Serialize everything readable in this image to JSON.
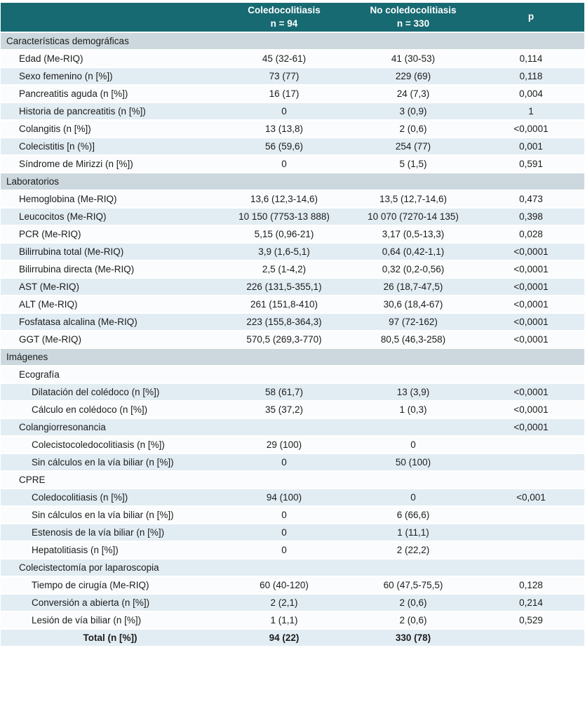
{
  "colors": {
    "header_bg": "#176a72",
    "header_text": "#ffffff",
    "section_bg": "#ccd8de",
    "row_light_bg": "#fbfcfd",
    "row_shaded_bg": "#e2edf3",
    "body_text": "#1c1c1c",
    "divider": "#ffffff"
  },
  "table": {
    "columns": [
      {
        "label": "",
        "sublabel": ""
      },
      {
        "label": "Coledocolitiasis",
        "sublabel": "n = 94"
      },
      {
        "label": "No coledocolitiasis",
        "sublabel": "n = 330"
      },
      {
        "label": "p",
        "sublabel": ""
      }
    ],
    "rows": [
      {
        "type": "section",
        "label": "Características demográficas"
      },
      {
        "type": "row",
        "indent": 1,
        "label": "Edad (Me-RIQ)",
        "v1": "45 (32-61)",
        "v2": "41 (30-53)",
        "p": "0,114"
      },
      {
        "type": "row",
        "indent": 1,
        "label": "Sexo femenino (n [%])",
        "v1": "73 (77)",
        "v2": "229 (69)",
        "p": "0,118"
      },
      {
        "type": "row",
        "indent": 1,
        "label": "Pancreatitis aguda (n [%])",
        "v1": "16 (17)",
        "v2": "24 (7,3)",
        "p": "0,004"
      },
      {
        "type": "row",
        "indent": 1,
        "label": "Historia de pancreatitis (n [%])",
        "v1": "0",
        "v2": "3 (0,9)",
        "p": "1"
      },
      {
        "type": "row",
        "indent": 1,
        "label": "Colangitis (n [%])",
        "v1": "13 (13,8)",
        "v2": "2 (0,6)",
        "p": "<0,0001"
      },
      {
        "type": "row",
        "indent": 1,
        "label": "Colecistitis [n (%)]",
        "v1": "56 (59,6)",
        "v2": "254 (77)",
        "p": "0,001"
      },
      {
        "type": "row",
        "indent": 1,
        "label": "Síndrome de Mirizzi (n [%])",
        "v1": "0",
        "v2": "5 (1,5)",
        "p": "0,591"
      },
      {
        "type": "section",
        "label": "Laboratorios"
      },
      {
        "type": "row",
        "indent": 1,
        "label": "Hemoglobina (Me-RIQ)",
        "v1": "13,6 (12,3-14,6)",
        "v2": "13,5 (12,7-14,6)",
        "p": "0,473"
      },
      {
        "type": "row",
        "indent": 1,
        "label": "Leucocitos (Me-RIQ)",
        "v1": "10 150 (7753-13 888)",
        "v2": "10 070 (7270-14 135)",
        "p": "0,398"
      },
      {
        "type": "row",
        "indent": 1,
        "label": "PCR (Me-RIQ)",
        "v1": "5,15 (0,96-21)",
        "v2": "3,17 (0,5-13,3)",
        "p": "0,028"
      },
      {
        "type": "row",
        "indent": 1,
        "label": "Bilirrubina total (Me-RIQ)",
        "v1": "3,9 (1,6-5,1)",
        "v2": "0,64 (0,42-1,1)",
        "p": "<0,0001"
      },
      {
        "type": "row",
        "indent": 1,
        "label": "Bilirrubina directa (Me-RIQ)",
        "v1": "2,5 (1-4,2)",
        "v2": "0,32 (0,2-0,56)",
        "p": "<0,0001"
      },
      {
        "type": "row",
        "indent": 1,
        "label": "AST (Me-RIQ)",
        "v1": "226 (131,5-355,1)",
        "v2": "26 (18,7-47,5)",
        "p": "<0,0001"
      },
      {
        "type": "row",
        "indent": 1,
        "label": "ALT (Me-RIQ)",
        "v1": "261 (151,8-410)",
        "v2": "30,6 (18,4-67)",
        "p": "<0,0001"
      },
      {
        "type": "row",
        "indent": 1,
        "label": "Fosfatasa alcalina (Me-RIQ)",
        "v1": "223 (155,8-364,3)",
        "v2": "97 (72-162)",
        "p": "<0,0001"
      },
      {
        "type": "row",
        "indent": 1,
        "label": "GGT (Me-RIQ)",
        "v1": "570,5 (269,3-770)",
        "v2": "80,5 (46,3-258)",
        "p": "<0,0001"
      },
      {
        "type": "section",
        "label": "Imágenes"
      },
      {
        "type": "row",
        "indent": 1,
        "label": "Ecografía",
        "v1": "",
        "v2": "",
        "p": ""
      },
      {
        "type": "row",
        "indent": 2,
        "label": "Dilatación del colédoco (n [%])",
        "v1": "58 (61,7)",
        "v2": "13 (3,9)",
        "p": "<0,0001"
      },
      {
        "type": "row",
        "indent": 2,
        "label": "Cálculo en colédoco (n [%])",
        "v1": "35 (37,2)",
        "v2": "1 (0,3)",
        "p": "<0,0001"
      },
      {
        "type": "row",
        "indent": 1,
        "label": "Colangiorresonancia",
        "v1": "",
        "v2": "",
        "p": "<0,0001"
      },
      {
        "type": "row",
        "indent": 2,
        "label": "Colecistocoledocolitiasis (n [%])",
        "v1": "29 (100)",
        "v2": "0",
        "p": ""
      },
      {
        "type": "row",
        "indent": 2,
        "label": "Sin cálculos en la vía biliar (n [%])",
        "v1": "0",
        "v2": "50 (100)",
        "p": ""
      },
      {
        "type": "row",
        "indent": 1,
        "label": "CPRE",
        "v1": "",
        "v2": "",
        "p": ""
      },
      {
        "type": "row",
        "indent": 2,
        "label": "Coledocolitiasis (n [%])",
        "v1": "94 (100)",
        "v2": "0",
        "p": "<0,001"
      },
      {
        "type": "row",
        "indent": 2,
        "label": "Sin cálculos en la vía biliar (n [%])",
        "v1": "0",
        "v2": "6 (66,6)",
        "p": ""
      },
      {
        "type": "row",
        "indent": 2,
        "label": "Estenosis de la vía biliar (n [%])",
        "v1": "0",
        "v2": "1 (11,1)",
        "p": ""
      },
      {
        "type": "row",
        "indent": 2,
        "label": "Hepatolitiasis (n [%])",
        "v1": "0",
        "v2": "2 (22,2)",
        "p": ""
      },
      {
        "type": "row",
        "indent": 1,
        "label": "Colecistectomía por laparoscopia",
        "v1": "",
        "v2": "",
        "p": ""
      },
      {
        "type": "row",
        "indent": 2,
        "label": "Tiempo de cirugía (Me-RIQ)",
        "v1": "60 (40-120)",
        "v2": "60 (47,5-75,5)",
        "p": "0,128"
      },
      {
        "type": "row",
        "indent": 2,
        "label": "Conversión a abierta (n [%])",
        "v1": "2 (2,1)",
        "v2": "2 (0,6)",
        "p": "0,214"
      },
      {
        "type": "row",
        "indent": 2,
        "label": "Lesión de vía biliar (n [%])",
        "v1": "1 (1,1)",
        "v2": "2 (0,6)",
        "p": "0,529"
      },
      {
        "type": "total",
        "indent": 1,
        "label": "Total (n [%])",
        "v1": "94 (22)",
        "v2": "330 (78)",
        "p": ""
      }
    ]
  }
}
